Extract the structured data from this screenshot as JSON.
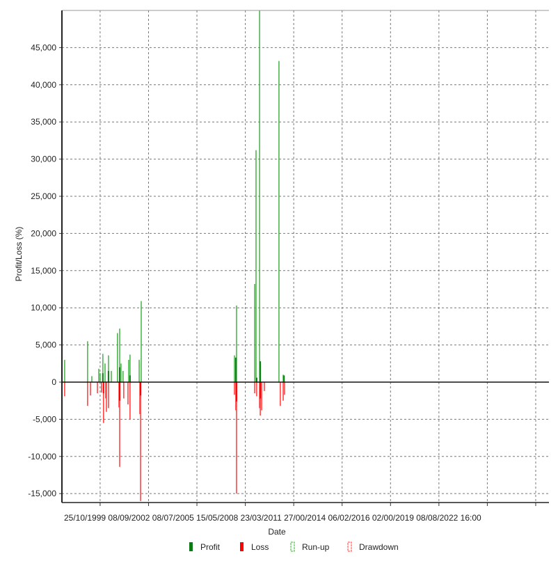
{
  "chart_data": {
    "type": "bar",
    "title": "",
    "xlabel": "Date",
    "ylabel": "Profit/Loss (%)",
    "ylim": [
      -16200,
      50000
    ],
    "xlim": [
      1997.57,
      2026.25
    ],
    "grid": true,
    "legend_placement": "bottom",
    "y_ticks": [
      -15000,
      -10000,
      -5000,
      0,
      5000,
      10000,
      15000,
      20000,
      25000,
      30000,
      35000,
      40000,
      45000
    ],
    "y_tick_labels": [
      "-15,000",
      "-10,000",
      "-5,000",
      "0",
      "5,000",
      "10,000",
      "15,000",
      "20,000",
      "25,000",
      "30,000",
      "35,000",
      "40,000",
      "45,000"
    ],
    "x_ticks": [
      1999.82,
      2002.67,
      2005.52,
      2008.37,
      2011.22,
      2014.07,
      2016.92,
      2019.77,
      2022.62,
      2025.47
    ],
    "x_tick_labels_text": "25/10/1999 08/09/2002 08/07/2005 15/05/2008 23/03/2011 27/00/2014 06/02/2016 02/00/2019 08/08/2022 16:00",
    "legend": [
      {
        "name": "Profit",
        "color": "#0a7a12"
      },
      {
        "name": "Loss",
        "color": "#ff0000"
      },
      {
        "name": "Run-up",
        "color": "#3cae3c"
      },
      {
        "name": "Drawdown",
        "color": "#ff4040"
      }
    ],
    "series": [
      {
        "name": "Run-up",
        "x": [
          1997.73,
          1999.08,
          1999.33,
          1999.74,
          1999.82,
          1999.98,
          2000.11,
          2000.31,
          2000.48,
          2000.84,
          2000.97,
          2001.05,
          2001.17,
          2001.5,
          2001.58,
          2002.12,
          2002.24,
          2007.73,
          2007.85,
          2008.92,
          2009.0,
          2009.21,
          2010.35,
          2010.6
        ],
        "values": [
          3000,
          5500,
          800,
          1800,
          1200,
          3800,
          2500,
          3600,
          1500,
          6600,
          7200,
          2500,
          1500,
          3000,
          3700,
          3000,
          10900,
          3600,
          10300,
          13200,
          31200,
          50000,
          43200,
          1000
        ]
      },
      {
        "name": "Profit",
        "x": [
          1999.98,
          2000.31,
          2000.97,
          2001.58,
          2007.81,
          2009.04,
          2009.25,
          2010.65
        ],
        "values": [
          1200,
          1500,
          2000,
          900,
          3300,
          600,
          2800,
          900
        ]
      },
      {
        "name": "Drawdown",
        "x": [
          1997.73,
          1999.08,
          1999.25,
          1999.66,
          1999.9,
          2000.02,
          2000.15,
          2000.19,
          2000.31,
          2000.93,
          2000.97,
          2001.21,
          2001.46,
          2001.58,
          2002.16,
          2002.2,
          2007.73,
          2007.81,
          2007.85,
          2008.92,
          2009.04,
          2009.21,
          2009.25,
          2009.33,
          2009.49,
          2010.43,
          2010.6,
          2010.68
        ],
        "values": [
          -1900,
          -3200,
          -1800,
          -1500,
          -1400,
          -5500,
          -2200,
          -4000,
          -3500,
          -3400,
          -11400,
          -2200,
          -3000,
          -5000,
          -4300,
          -16000,
          -1700,
          -3800,
          -15000,
          -1500,
          -1900,
          -3500,
          -4500,
          -3800,
          -1200,
          -3200,
          -2500,
          -1700
        ]
      },
      {
        "name": "Loss",
        "x": [
          2000.02,
          2000.97,
          2002.2,
          2007.85,
          2009.25
        ],
        "values": [
          -1500,
          -2500,
          -1800,
          -2600,
          -2200
        ]
      }
    ]
  }
}
